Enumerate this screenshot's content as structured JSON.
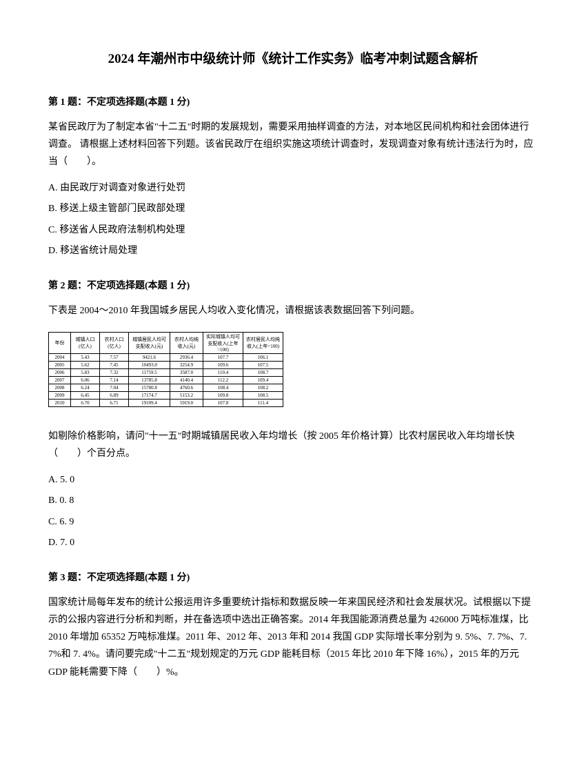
{
  "title": "2024 年潮州市中级统计师《统计工作实务》临考冲刺试题含解析",
  "q1": {
    "header": "第 1 题：不定项选择题(本题 1 分)",
    "body": "某省民政厅为了制定本省\"十二五\"时期的发展规划，需要采用抽样调查的方法，对本地区民间机构和社会团体进行调查。 请根据上述材料回答下列题。该省民政厅在组织实施这项统计调查时，发现调查对象有统计违法行为时，应当（　　）。",
    "optA": "A. 由民政厅对调查对象进行处罚",
    "optB": "B. 移送上级主管部门民政部处理",
    "optC": "C. 移送省人民政府法制机构处理",
    "optD": "D. 移送省统计局处理"
  },
  "q2": {
    "header": "第 2 题：不定项选择题(本题 1 分)",
    "intro": "下表是 2004～2010 年我国城乡居民人均收入变化情况，请根据该表数据回答下列问题。",
    "table": {
      "headers": [
        "年份",
        "城镇人口(亿人)",
        "农村人口(亿人)",
        "城镇居民人均可支配收入(元)",
        "农村人均纯收入(元)",
        "实际城镇人均可支配收入(上年=100)",
        "农村居民人均纯收入(上年=100)"
      ],
      "rows": [
        [
          "2004",
          "5.43",
          "7.57",
          "9421.6",
          "2936.4",
          "107.7",
          "106.1"
        ],
        [
          "2005",
          "5.62",
          "7.45",
          "10493.0",
          "3254.9",
          "109.6",
          "107.5"
        ],
        [
          "2006",
          "5.83",
          "7.32",
          "11759.5",
          "3587.0",
          "110.4",
          "108.7"
        ],
        [
          "2007",
          "6.06",
          "7.14",
          "13785.8",
          "4140.4",
          "112.2",
          "109.4"
        ],
        [
          "2008",
          "6.24",
          "7.04",
          "15780.8",
          "4760.6",
          "108.4",
          "108.2"
        ],
        [
          "2009",
          "6.45",
          "6.89",
          "17174.7",
          "5153.2",
          "109.8",
          "108.5"
        ],
        [
          "2010",
          "6.70",
          "6.71",
          "19109.4",
          "5919.0",
          "107.8",
          "111.4"
        ]
      ]
    },
    "body": "如剔除价格影响，请问\"十一五\"时期城镇居民收入年均增长（按 2005 年价格计算）比农村居民收入年均增长快（　　）个百分点。",
    "optA": "A. 5. 0",
    "optB": "B. 0. 8",
    "optC": "C. 6. 9",
    "optD": "D. 7. 0"
  },
  "q3": {
    "header": "第 3 题：不定项选择题(本题 1 分)",
    "body": "国家统计局每年发布的统计公报运用许多重要统计指标和数据反映一年来国民经济和社会发展状况。试根据以下提示的公报内容进行分析和判断，并在备选项中选出正确答案。2014 年我国能源消费总量为 426000 万吨标准煤，比 2010 年增加 65352 万吨标准煤。2011 年、2012 年、2013 年和 2014 我国 GDP 实际增长率分别为 9. 5%、7. 7%、7. 7%和 7. 4%。请问要完成\"十二五\"规划规定的万元 GDP 能耗目标（2015 年比 2010 年下降 16%），2015 年的万元 GDP 能耗需要下降（　　）%。"
  }
}
